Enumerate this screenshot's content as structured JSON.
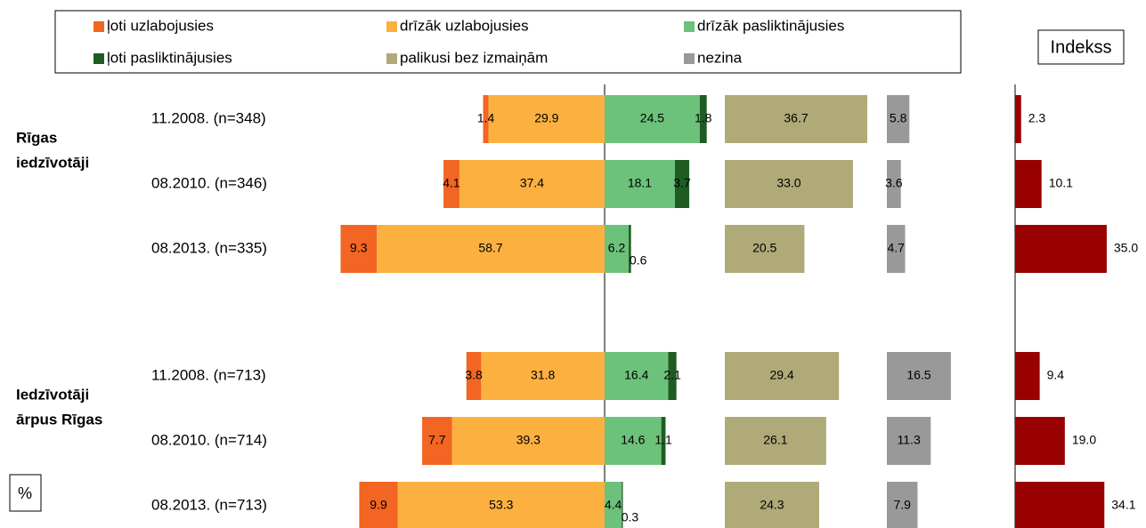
{
  "chart_data": {
    "type": "diverging_bar",
    "group_labels": [
      "Rīgas iedzīvotāji",
      "Iedzīvotāji ārpus Rīgas"
    ],
    "categories": [
      "11.2008. (n=348)",
      "08.2010. (n=346)",
      "08.2013. (n=335)",
      "11.2008. (n=713)",
      "08.2010. (n=714)",
      "08.2013. (n=713)"
    ],
    "series": [
      {
        "name": "ļoti uzlabojusies",
        "color": "#f26522",
        "values": [
          1.4,
          4.1,
          9.3,
          3.8,
          7.7,
          9.9
        ],
        "value_labels": [
          "1.4",
          "4.1",
          "9.3",
          "3.8",
          "7.7",
          "9.9"
        ]
      },
      {
        "name": "drīzāk uzlabojusies",
        "color": "#fbb040",
        "values": [
          29.9,
          37.4,
          58.7,
          31.8,
          39.3,
          53.3
        ],
        "value_labels": [
          "29.9",
          "37.4",
          "58.7",
          "31.8",
          "39.3",
          "53.3"
        ]
      },
      {
        "name": "drīzāk pasliktinājusies",
        "color": "#6cc27a",
        "values": [
          24.5,
          18.1,
          6.2,
          16.4,
          14.6,
          4.4
        ],
        "value_labels": [
          "24.5",
          "18.1",
          "6.2",
          "16.4",
          "14.6",
          "4.4"
        ]
      },
      {
        "name": "ļoti pasliktinājusies",
        "color": "#1e5c24",
        "values": [
          1.8,
          3.7,
          0.6,
          2.1,
          1.1,
          0.3
        ],
        "value_labels": [
          "1.8",
          "3.7",
          "0.6",
          "2.1",
          "1.1",
          "0.3"
        ]
      },
      {
        "name": "palikusi bez izmaiņām",
        "color": "#b0aa78",
        "values": [
          36.7,
          33.0,
          20.5,
          29.4,
          26.1,
          24.3
        ],
        "value_labels": [
          "36.7",
          "33.0",
          "20.5",
          "29.4",
          "26.1",
          "24.3"
        ]
      },
      {
        "name": "nezina",
        "color": "#999999",
        "values": [
          5.8,
          3.6,
          4.7,
          16.5,
          11.3,
          7.9
        ],
        "value_labels": [
          "5.8",
          "3.6",
          "4.7",
          "16.5",
          "11.3",
          "7.9"
        ]
      }
    ],
    "index": {
      "title": "Indekss",
      "color": "#990000",
      "values": [
        2.3,
        10.1,
        35.0,
        9.4,
        19.0,
        34.1
      ],
      "value_labels": [
        "2.3",
        "10.1",
        "35.0",
        "9.4",
        "19.0",
        "34.1"
      ]
    },
    "unit_label": "%"
  }
}
